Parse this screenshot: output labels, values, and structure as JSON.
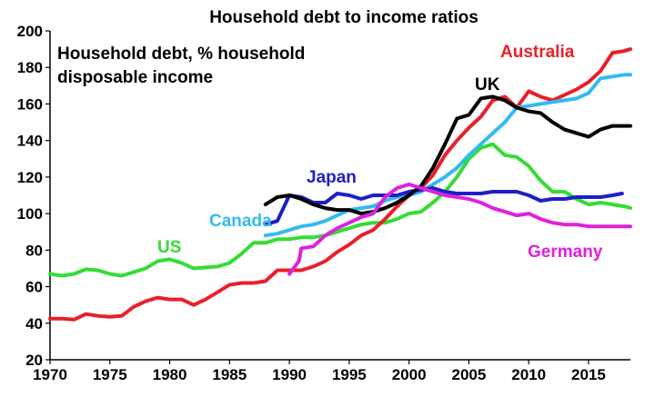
{
  "chart_data": {
    "type": "line",
    "title": "Household debt to income ratios",
    "subtitle": [
      "Household debt, % household",
      "disposable income"
    ],
    "xlim": [
      1970,
      2018.5
    ],
    "ylim": [
      20,
      200
    ],
    "xticks": [
      1970,
      1975,
      1980,
      1985,
      1990,
      1995,
      2000,
      2005,
      2010,
      2015
    ],
    "yticks": [
      20,
      40,
      60,
      80,
      100,
      120,
      140,
      160,
      180,
      200
    ],
    "grid": false,
    "legend": "inline labels",
    "series": [
      {
        "name": "US",
        "color": "#33dd33",
        "x": [
          1970,
          1971,
          1972,
          1973,
          1974,
          1975,
          1976,
          1977,
          1978,
          1979,
          1980,
          1981,
          1982,
          1983,
          1984,
          1985,
          1986,
          1987,
          1988,
          1989,
          1990,
          1991,
          1992,
          1993,
          1994,
          1995,
          1996,
          1997,
          1998,
          1999,
          2000,
          2001,
          2002,
          2003,
          2004,
          2005,
          2006,
          2007,
          2008,
          2009,
          2010,
          2011,
          2012,
          2013,
          2014,
          2015,
          2016,
          2017,
          2018,
          2018.5
        ],
        "y": [
          67,
          66,
          67,
          69.5,
          69,
          67,
          66,
          68,
          70,
          74,
          75,
          73,
          70,
          70.5,
          71,
          73,
          78,
          84,
          84,
          86,
          86,
          87,
          87,
          88,
          90,
          92,
          94,
          95,
          95,
          97,
          100,
          101,
          106,
          112,
          120,
          130,
          136,
          138,
          132,
          131,
          126,
          118,
          112,
          112,
          108,
          105,
          106,
          105,
          104,
          103
        ]
      },
      {
        "name": "Australia",
        "color": "#e8202a",
        "x": [
          1970,
          1971,
          1972,
          1973,
          1974,
          1975,
          1976,
          1977,
          1978,
          1979,
          1980,
          1981,
          1982,
          1983,
          1984,
          1985,
          1986,
          1987,
          1988,
          1989,
          1990,
          1991,
          1992,
          1993,
          1994,
          1995,
          1996,
          1997,
          1998,
          1999,
          2000,
          2001,
          2002,
          2003,
          2004,
          2005,
          2006,
          2007,
          2008,
          2009,
          2010,
          2011,
          2012,
          2013,
          2014,
          2015,
          2016,
          2017,
          2018,
          2018.5
        ],
        "y": [
          42.5,
          42.5,
          42,
          45,
          44,
          43.5,
          44,
          49,
          52,
          54,
          53,
          53,
          50,
          53,
          57,
          61,
          62,
          62,
          63,
          69,
          69,
          69,
          71,
          74,
          79,
          83,
          88,
          91,
          97,
          104,
          110,
          114,
          121,
          132,
          140,
          147,
          153,
          162,
          164,
          158,
          167,
          164,
          162,
          165,
          168,
          172,
          178,
          188,
          189,
          190
        ]
      },
      {
        "name": "Canada",
        "color": "#33bbee",
        "x": [
          1988,
          1989,
          1990,
          1991,
          1992,
          1993,
          1994,
          1995,
          1996,
          1997,
          1998,
          1999,
          2000,
          2001,
          2002,
          2003,
          2004,
          2005,
          2006,
          2007,
          2008,
          2009,
          2010,
          2011,
          2012,
          2013,
          2014,
          2015,
          2016,
          2017,
          2018,
          2018.5
        ],
        "y": [
          88,
          89,
          91,
          93,
          94,
          96,
          99,
          102,
          103,
          104,
          107,
          109,
          110,
          112,
          116,
          120,
          125,
          132,
          138,
          144,
          150,
          158,
          159,
          160,
          161,
          162,
          163,
          166,
          174,
          175,
          176,
          176
        ]
      },
      {
        "name": "Japan",
        "color": "#1e1ec8",
        "x": [
          1988,
          1989,
          1990,
          1991,
          1992,
          1993,
          1994,
          1995,
          1996,
          1997,
          1998,
          1999,
          2000,
          2001,
          2002,
          2003,
          2004,
          2005,
          2006,
          2007,
          2008,
          2009,
          2010,
          2011,
          2012,
          2013,
          2014,
          2015,
          2016,
          2017,
          2017.8
        ],
        "y": [
          94,
          96,
          110,
          109,
          106,
          106,
          111,
          110,
          108,
          110,
          110,
          110,
          112,
          113,
          114,
          112,
          111,
          111,
          111,
          112,
          112,
          112,
          110,
          107,
          108,
          108,
          109,
          109,
          109,
          110,
          111
        ]
      },
      {
        "name": "UK",
        "color": "#000000",
        "x": [
          1988,
          1989,
          1990,
          1991,
          1992,
          1993,
          1994,
          1995,
          1996,
          1997,
          1998,
          1999,
          2000,
          2001,
          2002,
          2003,
          2004,
          2005,
          2006,
          2007,
          2008,
          2009,
          2010,
          2011,
          2012,
          2013,
          2014,
          2015,
          2016,
          2017,
          2018,
          2018.5
        ],
        "y": [
          105,
          109,
          110,
          108,
          105,
          103,
          102,
          102,
          100,
          101,
          103,
          106,
          110,
          115,
          125,
          138,
          152,
          154,
          163,
          164,
          162,
          158,
          156,
          155,
          150,
          146,
          144,
          142,
          146,
          148,
          148,
          148
        ]
      },
      {
        "name": "Germany",
        "color": "#dd22dd",
        "x": [
          1990,
          1990.8,
          1991,
          1992,
          1993,
          1994,
          1995,
          1996,
          1997,
          1998,
          1999,
          2000,
          2001,
          2002,
          2003,
          2004,
          2005,
          2006,
          2007,
          2008,
          2009,
          2010,
          2011,
          2012,
          2013,
          2014,
          2015,
          2016,
          2017,
          2018,
          2018.5
        ],
        "y": [
          67,
          74,
          81,
          82,
          88,
          92,
          95,
          98,
          100,
          109,
          114,
          116,
          114,
          112,
          110,
          109,
          108,
          106,
          103,
          101,
          99,
          100,
          97,
          95,
          94,
          94,
          93,
          93,
          93,
          93,
          93
        ]
      }
    ]
  },
  "labels": {
    "us": "US",
    "australia": "Australia",
    "canada": "Canada",
    "japan": "Japan",
    "uk": "UK",
    "germany": "Germany"
  }
}
